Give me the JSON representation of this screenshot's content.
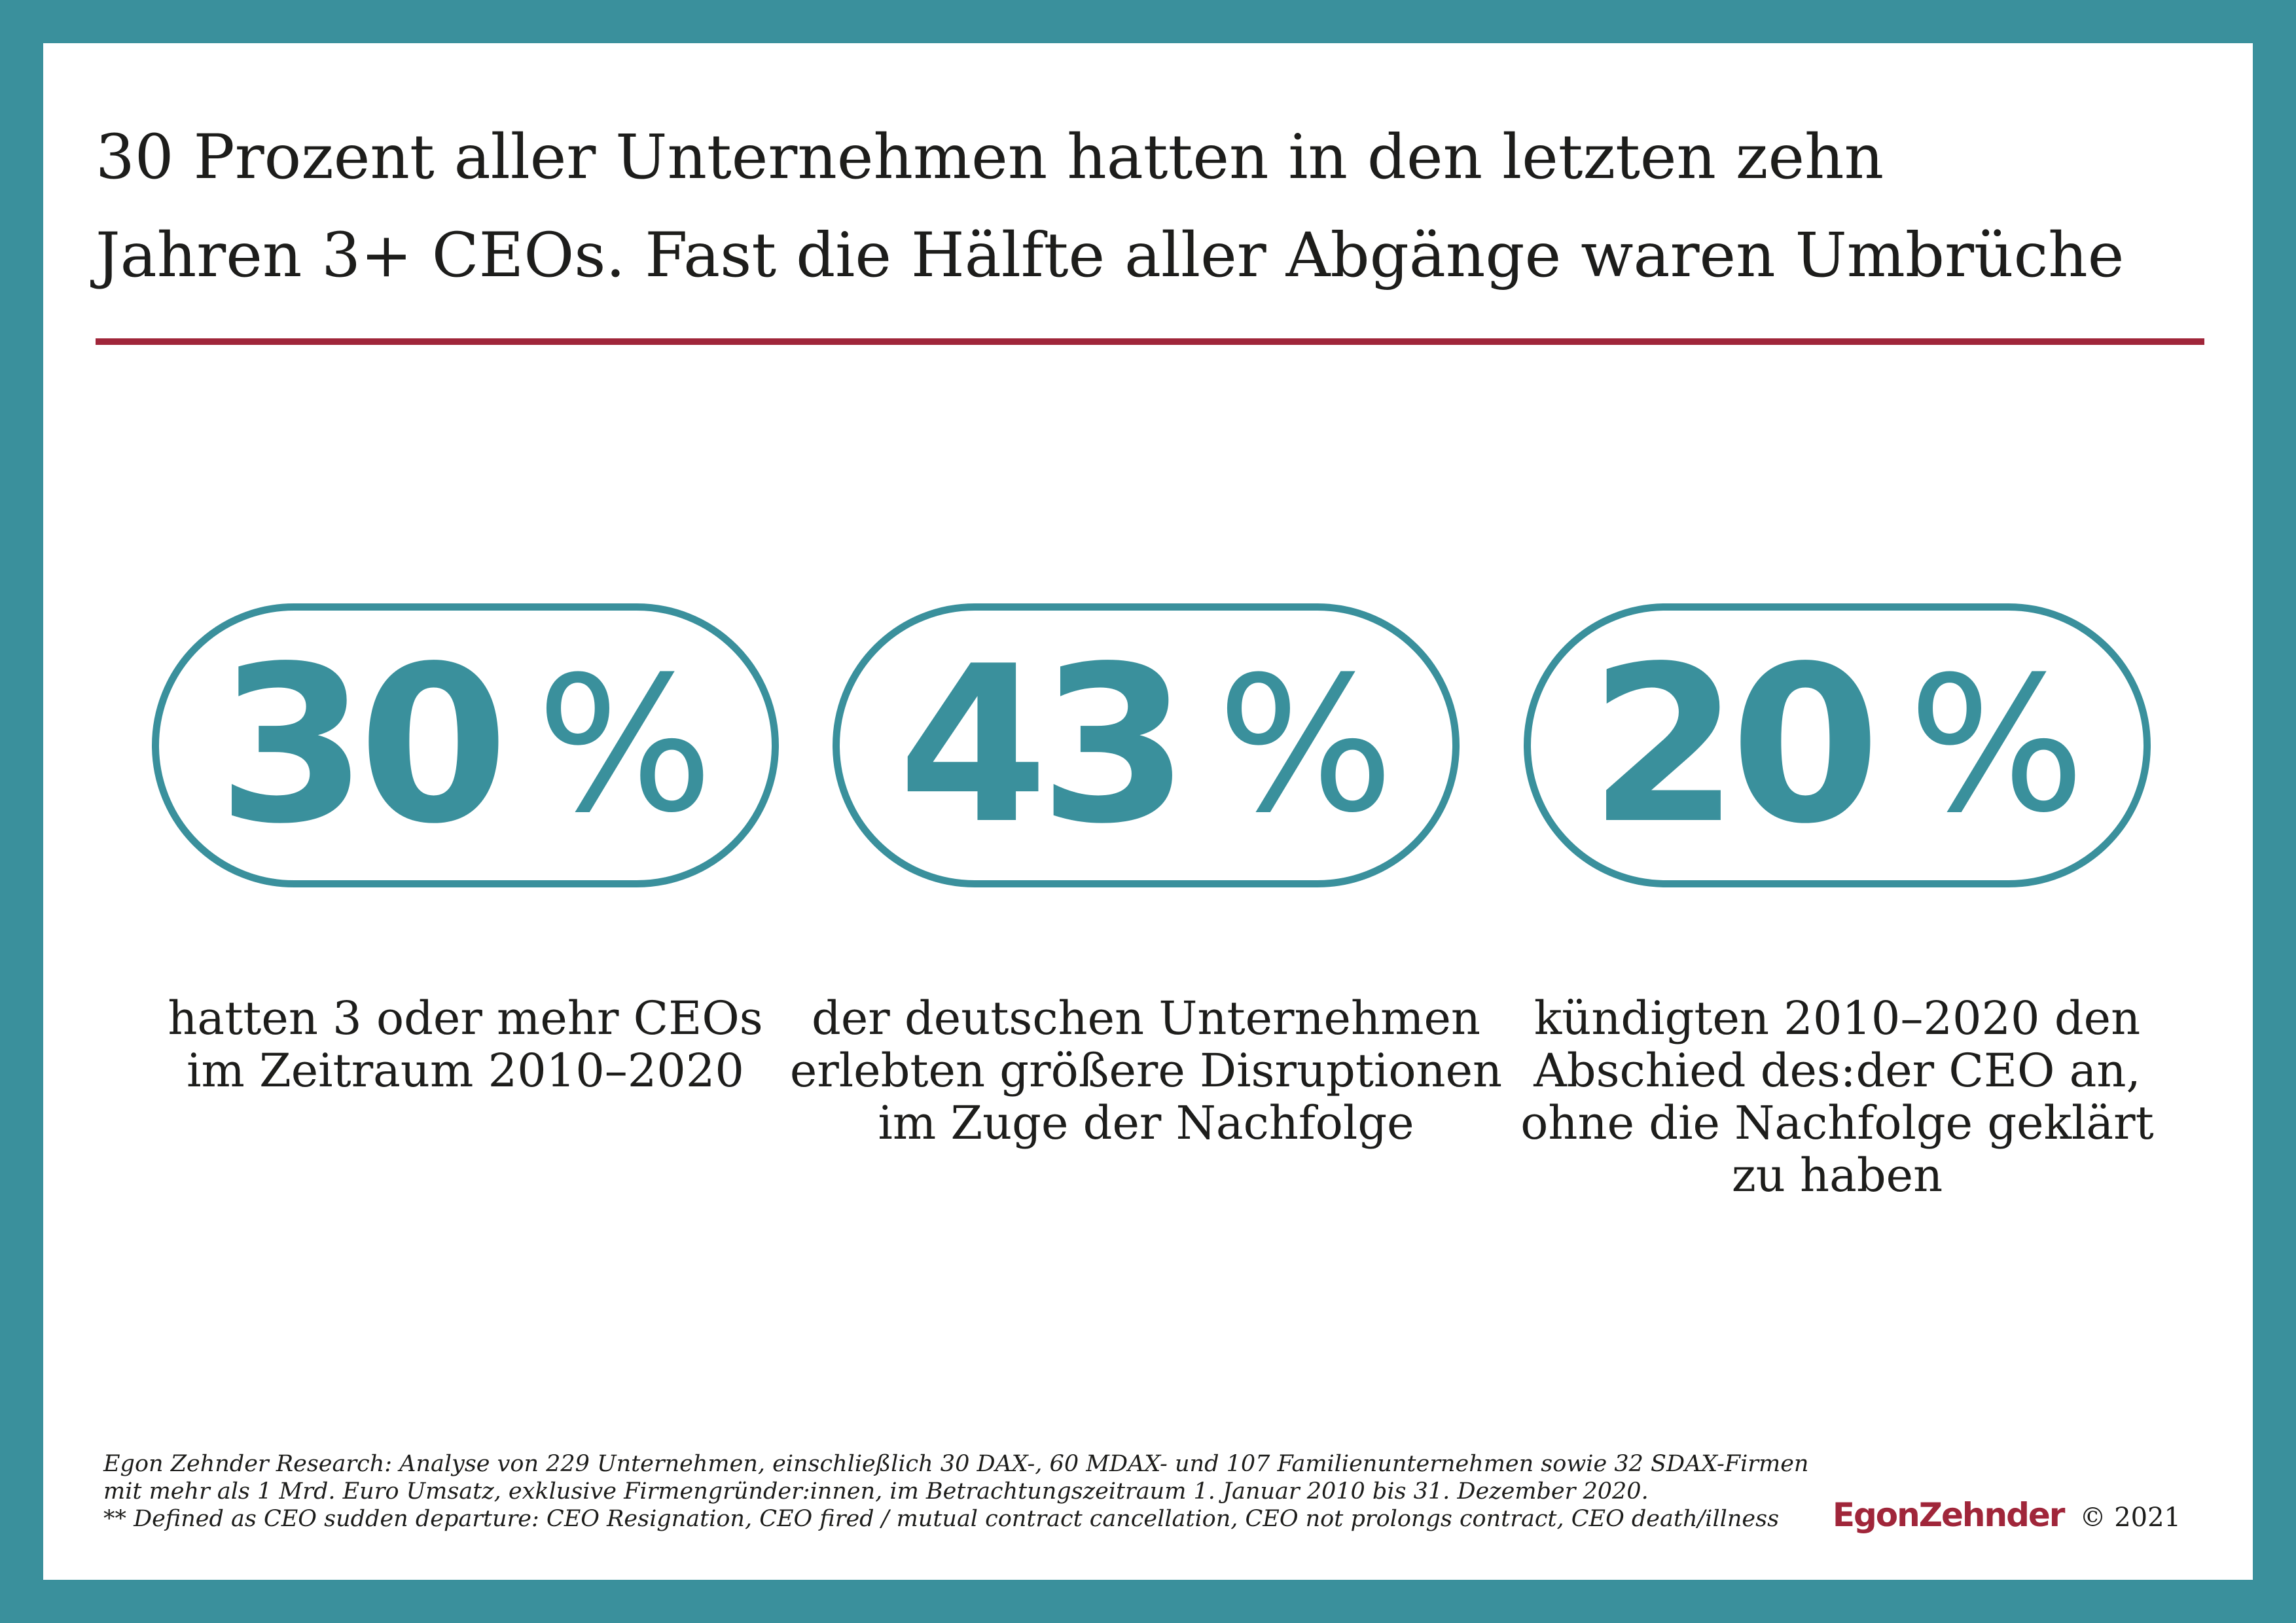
{
  "title": {
    "lines": [
      "30 Prozent aller Unternehmen hatten in den letzten zehn",
      "Jahren 3+ CEOs. Fast die Hälfte aller Abgänge waren Umbrüche"
    ]
  },
  "stats": [
    {
      "value": "30",
      "unit": "%",
      "caption": [
        "hatten 3 oder mehr CEOs",
        "im Zeitraum 2010–2020"
      ]
    },
    {
      "value": "43",
      "unit": "%",
      "caption": [
        "der deutschen Unternehmen",
        "erlebten größere Disruptionen",
        "im Zuge der Nachfolge"
      ]
    },
    {
      "value": "20",
      "unit": "%",
      "caption": [
        "kündigten 2010–2020 den",
        "Abschied des:der CEO an,",
        "ohne die Nachfolge geklärt",
        "zu haben"
      ]
    }
  ],
  "footnote": {
    "lines": [
      "Egon Zehnder Research: Analyse von 229 Unternehmen, einschließlich 30 DAX-, 60 MDAX- und 107 Familienunternehmen sowie 32 SDAX-Firmen",
      "mit mehr als 1 Mrd. Euro Umsatz, exklusive Firmengründer:innen, im Betrachtungszeitraum 1. Januar 2010 bis 31. Dezember 2020.",
      "** Defined as CEO sudden departure: CEO Resignation, CEO fired /  mutual contract cancellation, CEO not prolongs contract, CEO death/illness"
    ]
  },
  "brand": {
    "logo": "EgonZehnder",
    "copyright": "© 2021"
  },
  "colors": {
    "teal": "#3a909c",
    "red": "#a0263a",
    "text": "#1d1d1b"
  }
}
